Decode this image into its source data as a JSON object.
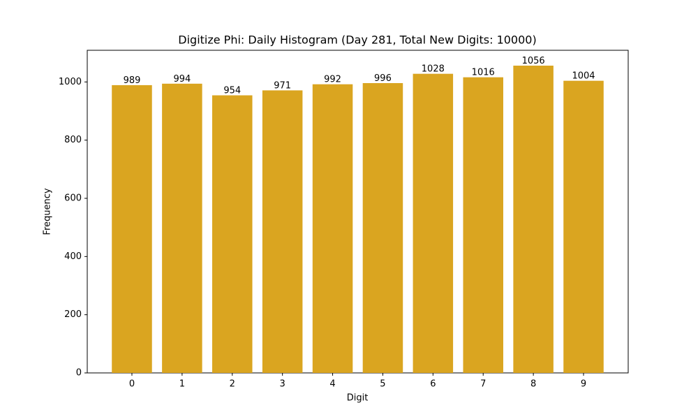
{
  "chart_data": {
    "type": "bar",
    "title": "Digitize Phi: Daily Histogram (Day 281, Total New Digits: 10000)",
    "x_label": "Digit",
    "y_label": "Frequency",
    "categories": [
      "0",
      "1",
      "2",
      "3",
      "4",
      "5",
      "6",
      "7",
      "8",
      "9"
    ],
    "values": [
      989,
      994,
      954,
      971,
      992,
      996,
      1028,
      1016,
      1056,
      1004
    ],
    "color": "#daa520",
    "ylim": [
      0,
      1108.8
    ],
    "yticks": [
      0,
      200,
      400,
      600,
      800,
      1000
    ]
  }
}
